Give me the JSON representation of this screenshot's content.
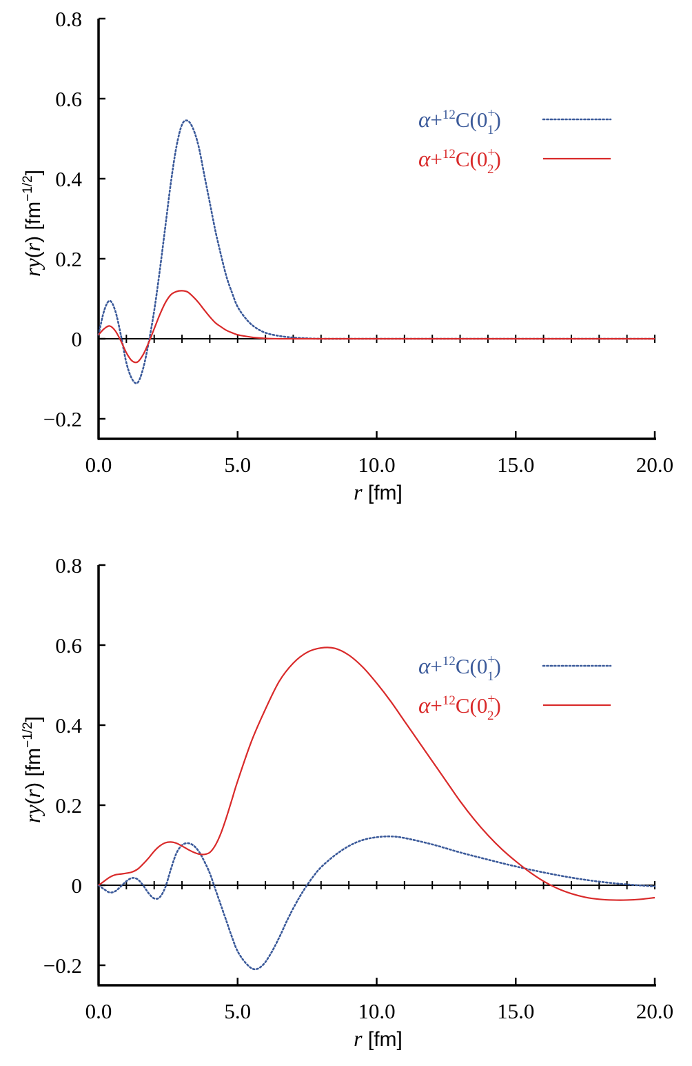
{
  "colors": {
    "blue": "#3b5a9a",
    "red": "#d92a2a",
    "axis": "#000000"
  },
  "chart_data": [
    {
      "type": "line",
      "title": "",
      "xlabel_var": "r",
      "xlabel_unit": "[fm]",
      "ylabel_var_r": "r",
      "ylabel_var_y": "y",
      "ylabel_paren_open": "(",
      "ylabel_arg": "r",
      "ylabel_paren_close": ")",
      "ylabel_unit_open": " [fm",
      "ylabel_unit_exp": "−1/2",
      "ylabel_unit_close": "]",
      "xlim": [
        0,
        20
      ],
      "ylim": [
        -0.25,
        0.8
      ],
      "xticks": [
        0,
        5,
        10,
        15,
        20
      ],
      "xtick_labels": [
        "0.0",
        "5.0",
        "10.0",
        "15.0",
        "20.0"
      ],
      "minor_xticks": [
        1,
        2,
        3,
        4,
        6,
        7,
        8,
        9,
        11,
        12,
        13,
        14,
        16,
        17,
        18,
        19
      ],
      "yticks": [
        -0.2,
        0,
        0.2,
        0.4,
        0.6,
        0.8
      ],
      "ytick_labels": [
        "−0.2",
        "0",
        "0.2",
        "0.4",
        "0.6",
        "0.8"
      ],
      "legend_position": "top-right",
      "series": [
        {
          "name": "α+12C(0+1)",
          "legend": {
            "alpha": "α",
            "plus": "+",
            "mass": "12",
            "elem": "C(0",
            "sup": "+",
            "sub": "1",
            "close": ")"
          },
          "style": "dotted",
          "color": "#3b5a9a",
          "x": [
            0,
            0.2,
            0.4,
            0.6,
            0.8,
            1.0,
            1.2,
            1.4,
            1.6,
            1.8,
            2.0,
            2.2,
            2.4,
            2.6,
            2.8,
            3.0,
            3.2,
            3.4,
            3.6,
            3.8,
            4.0,
            4.2,
            4.4,
            4.6,
            4.8,
            5.0,
            5.3,
            5.6,
            6.0,
            6.5,
            7.0,
            7.5,
            8.0,
            9.0,
            10.0,
            12.0,
            14.0,
            16.0,
            18.0,
            20.0
          ],
          "y": [
            0.01,
            0.07,
            0.095,
            0.07,
            0.01,
            -0.06,
            -0.1,
            -0.11,
            -0.075,
            -0.01,
            0.07,
            0.17,
            0.28,
            0.39,
            0.48,
            0.535,
            0.545,
            0.525,
            0.48,
            0.41,
            0.34,
            0.27,
            0.21,
            0.155,
            0.115,
            0.08,
            0.05,
            0.03,
            0.015,
            0.007,
            0.003,
            0.001,
            0,
            0,
            0,
            0,
            0,
            0,
            0,
            0
          ]
        },
        {
          "name": "α+12C(0+2)",
          "legend": {
            "alpha": "α",
            "plus": "+",
            "mass": "12",
            "elem": "C(0",
            "sup": "+",
            "sub": "2",
            "close": ")"
          },
          "style": "solid",
          "color": "#d92a2a",
          "x": [
            0,
            0.2,
            0.4,
            0.6,
            0.8,
            1.0,
            1.2,
            1.4,
            1.6,
            1.8,
            2.0,
            2.2,
            2.4,
            2.6,
            2.8,
            3.0,
            3.2,
            3.4,
            3.6,
            3.8,
            4.0,
            4.2,
            4.4,
            4.6,
            4.8,
            5.0,
            5.3,
            5.6,
            6.0,
            6.5,
            7.0,
            8.0,
            10.0,
            12.0,
            14.0,
            16.0,
            18.0,
            20.0
          ],
          "y": [
            0.01,
            0.025,
            0.032,
            0.02,
            -0.005,
            -0.035,
            -0.055,
            -0.058,
            -0.04,
            -0.01,
            0.025,
            0.06,
            0.09,
            0.11,
            0.118,
            0.12,
            0.117,
            0.105,
            0.09,
            0.072,
            0.055,
            0.04,
            0.03,
            0.021,
            0.015,
            0.01,
            0.006,
            0.003,
            0.001,
            0,
            0,
            0,
            0,
            0,
            0,
            0,
            0,
            0
          ]
        }
      ]
    },
    {
      "type": "line",
      "title": "",
      "xlabel_var": "r",
      "xlabel_unit": "[fm]",
      "ylabel_var_r": "r",
      "ylabel_var_y": "y",
      "ylabel_paren_open": "(",
      "ylabel_arg": "r",
      "ylabel_paren_close": ")",
      "ylabel_unit_open": " [fm",
      "ylabel_unit_exp": "−1/2",
      "ylabel_unit_close": "]",
      "xlim": [
        0,
        20
      ],
      "ylim": [
        -0.25,
        0.8
      ],
      "xticks": [
        0,
        5,
        10,
        15,
        20
      ],
      "xtick_labels": [
        "0.0",
        "5.0",
        "10.0",
        "15.0",
        "20.0"
      ],
      "minor_xticks": [
        1,
        2,
        3,
        4,
        6,
        7,
        8,
        9,
        11,
        12,
        13,
        14,
        16,
        17,
        18,
        19
      ],
      "yticks": [
        -0.2,
        0,
        0.2,
        0.4,
        0.6,
        0.8
      ],
      "ytick_labels": [
        "−0.2",
        "0",
        "0.2",
        "0.4",
        "0.6",
        "0.8"
      ],
      "legend_position": "top-right",
      "series": [
        {
          "name": "α+12C(0+1)",
          "legend": {
            "alpha": "α",
            "plus": "+",
            "mass": "12",
            "elem": "C(0",
            "sup": "+",
            "sub": "1",
            "close": ")"
          },
          "style": "dotted",
          "color": "#3b5a9a",
          "x": [
            0,
            0.2,
            0.4,
            0.6,
            0.8,
            1.0,
            1.2,
            1.4,
            1.6,
            1.8,
            2.0,
            2.2,
            2.4,
            2.6,
            2.8,
            3.0,
            3.2,
            3.4,
            3.6,
            3.8,
            4.0,
            4.2,
            4.4,
            4.6,
            4.8,
            5.0,
            5.3,
            5.6,
            5.9,
            6.2,
            6.5,
            6.8,
            7.1,
            7.4,
            7.7,
            8.0,
            8.5,
            9.0,
            9.5,
            10.0,
            10.5,
            11.0,
            12.0,
            13.0,
            14.0,
            15.0,
            16.0,
            17.0,
            18.0,
            19.0,
            20.0
          ],
          "y": [
            0,
            -0.01,
            -0.018,
            -0.015,
            -0.003,
            0.01,
            0.018,
            0.015,
            0,
            -0.02,
            -0.033,
            -0.03,
            -0.005,
            0.04,
            0.08,
            0.1,
            0.105,
            0.1,
            0.085,
            0.06,
            0.03,
            -0.01,
            -0.05,
            -0.09,
            -0.13,
            -0.165,
            -0.195,
            -0.21,
            -0.2,
            -0.17,
            -0.13,
            -0.085,
            -0.045,
            -0.01,
            0.02,
            0.045,
            0.075,
            0.098,
            0.113,
            0.12,
            0.122,
            0.118,
            0.102,
            0.082,
            0.064,
            0.047,
            0.032,
            0.019,
            0.009,
            0.002,
            -0.003
          ]
        },
        {
          "name": "α+12C(0+2)",
          "legend": {
            "alpha": "α",
            "plus": "+",
            "mass": "12",
            "elem": "C(0",
            "sup": "+",
            "sub": "2",
            "close": ")"
          },
          "style": "solid",
          "color": "#d92a2a",
          "x": [
            0,
            0.2,
            0.4,
            0.6,
            0.8,
            1.0,
            1.2,
            1.4,
            1.6,
            1.8,
            2.0,
            2.2,
            2.4,
            2.6,
            2.8,
            3.0,
            3.2,
            3.4,
            3.6,
            3.8,
            4.0,
            4.2,
            4.4,
            4.6,
            4.8,
            5.0,
            5.5,
            6.0,
            6.5,
            7.0,
            7.5,
            8.0,
            8.5,
            9.0,
            9.5,
            10.0,
            10.5,
            11.0,
            11.5,
            12.0,
            12.5,
            13.0,
            13.5,
            14.0,
            14.5,
            15.0,
            15.5,
            16.0,
            16.5,
            17.0,
            17.5,
            18.0,
            18.5,
            19.0,
            19.5,
            20.0
          ],
          "y": [
            0,
            0.01,
            0.02,
            0.026,
            0.028,
            0.03,
            0.033,
            0.04,
            0.053,
            0.068,
            0.085,
            0.098,
            0.106,
            0.108,
            0.105,
            0.098,
            0.09,
            0.083,
            0.078,
            0.077,
            0.082,
            0.1,
            0.13,
            0.17,
            0.215,
            0.26,
            0.36,
            0.44,
            0.51,
            0.555,
            0.582,
            0.593,
            0.592,
            0.575,
            0.545,
            0.505,
            0.46,
            0.41,
            0.36,
            0.31,
            0.26,
            0.21,
            0.165,
            0.125,
            0.09,
            0.06,
            0.033,
            0.01,
            -0.008,
            -0.021,
            -0.03,
            -0.035,
            -0.037,
            -0.037,
            -0.035,
            -0.031
          ]
        }
      ]
    }
  ]
}
